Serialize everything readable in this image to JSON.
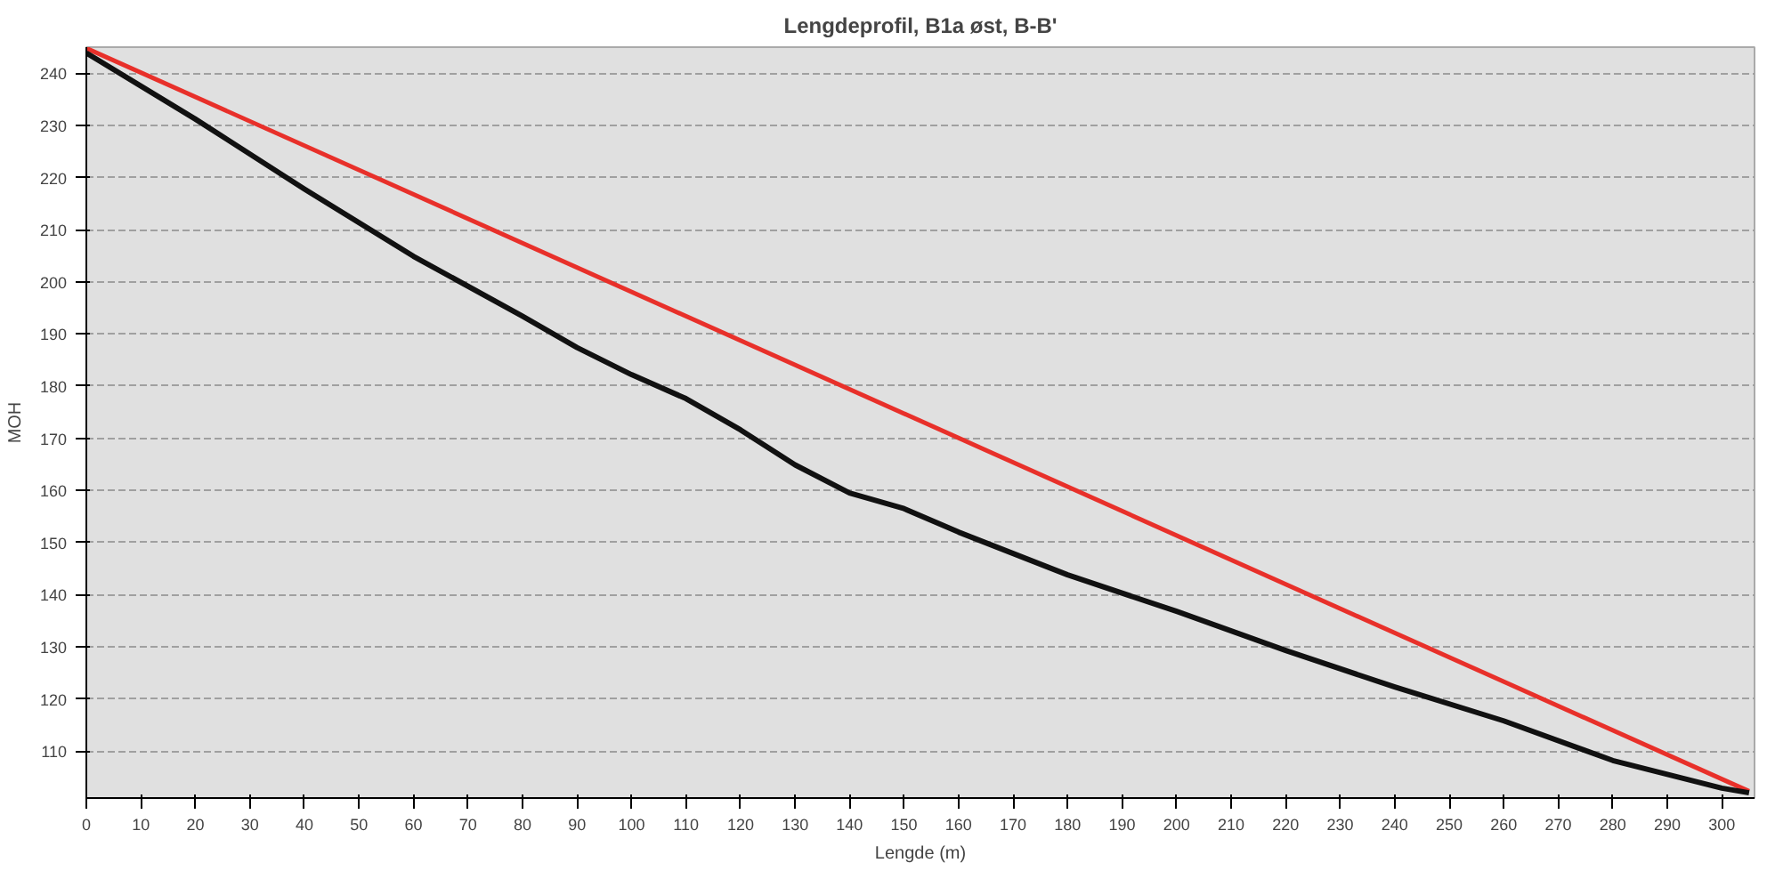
{
  "chart_data": {
    "type": "line",
    "title": "Lengdeprofil, B1a øst, B-B'",
    "xlabel": "Lengde (m)",
    "ylabel": "MOH",
    "series": [
      {
        "color": "#e8302a",
        "x": [
          0,
          305
        ],
        "values": [
          244.8,
          102.3
        ]
      },
      {
        "color": "#111111",
        "x": [
          0,
          20,
          40,
          60,
          80,
          90,
          100,
          110,
          120,
          130,
          140,
          150,
          160,
          180,
          200,
          220,
          240,
          260,
          280,
          300,
          305
        ],
        "values": [
          243.9,
          231.2,
          217.8,
          204.9,
          193.4,
          187.4,
          182.2,
          177.6,
          171.6,
          164.9,
          159.5,
          156.5,
          152,
          143.8,
          136.8,
          129.3,
          122.3,
          115.8,
          108.2,
          102.9,
          102
        ]
      }
    ],
    "xlim": [
      0,
      306
    ],
    "ylim": [
      101,
      245
    ],
    "xticks": [
      0,
      10,
      20,
      30,
      40,
      50,
      60,
      70,
      80,
      90,
      100,
      110,
      120,
      130,
      140,
      150,
      160,
      170,
      180,
      190,
      200,
      210,
      220,
      230,
      240,
      250,
      260,
      270,
      280,
      290,
      300
    ],
    "yticks": [
      110,
      120,
      130,
      140,
      150,
      160,
      170,
      180,
      190,
      200,
      210,
      220,
      230,
      240
    ],
    "grid": "y",
    "line_style": "solid",
    "marker": "none"
  }
}
